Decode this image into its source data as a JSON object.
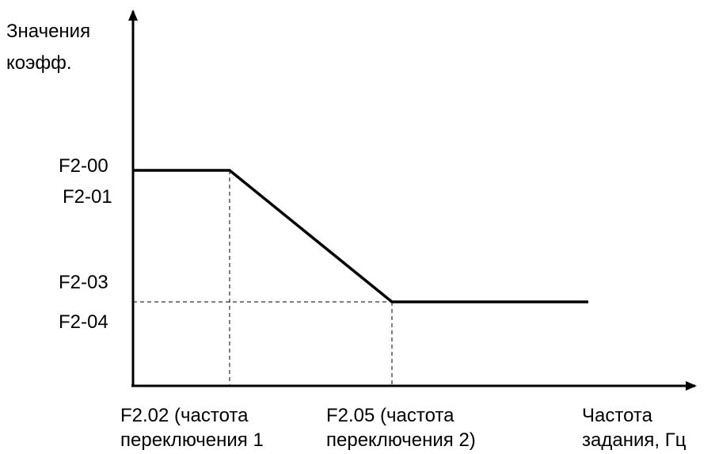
{
  "y_axis": {
    "label_lines": [
      "Значения",
      "коэфф."
    ]
  },
  "x_axis": {
    "label_lines": [
      "Частота",
      "задания, Гц"
    ]
  },
  "levels": {
    "high": [
      "F2-00",
      "F2-01"
    ],
    "low": [
      "F2-03",
      "F2-04"
    ]
  },
  "breakpoints": [
    {
      "lines": [
        "F2.02 (частота",
        "переключения 1"
      ]
    },
    {
      "lines": [
        "F2.05 (частота",
        "переключения 2)"
      ]
    }
  ]
}
